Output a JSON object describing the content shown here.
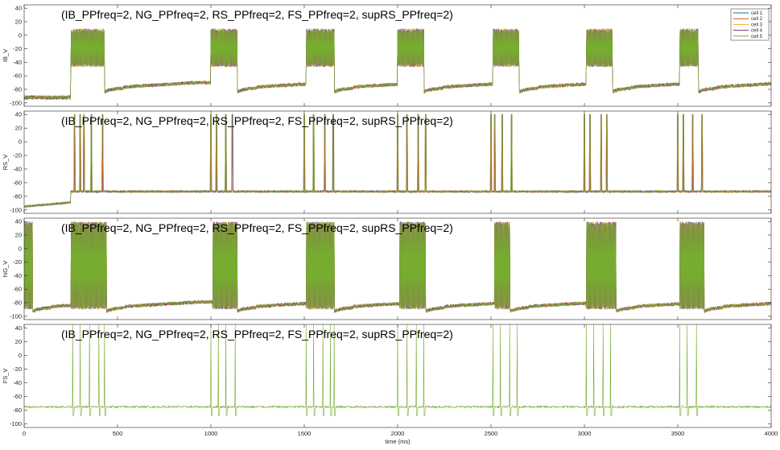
{
  "chart_data": [
    {
      "type": "line",
      "title": "(IB_PPfreq=2, NG_PPfreq=2, RS_PPfreq=2, FS_PPfreq=2, supRS_PPfreq=2)",
      "ylabel": "IB_V",
      "xlabel": "",
      "xlim": [
        0,
        4000
      ],
      "ylim": [
        -105,
        45
      ],
      "yticks": [
        -100,
        -80,
        -60,
        -40,
        -20,
        0,
        20,
        40
      ],
      "xticks": [
        0,
        500,
        1000,
        1500,
        2000,
        2500,
        3000,
        3500,
        4000
      ],
      "show_xtick_labels": false,
      "grid": false,
      "legend_position": "top-right",
      "burst_windows_ms": [
        [
          250,
          430
        ],
        [
          1000,
          1140
        ],
        [
          1510,
          1660
        ],
        [
          2000,
          2140
        ],
        [
          2510,
          2650
        ],
        [
          3010,
          3150
        ],
        [
          3510,
          3610
        ]
      ],
      "burst_range_mV": [
        -47,
        10
      ],
      "baseline_start_mV": -92,
      "baseline_level_mV": -78,
      "series": [
        {
          "name": "cell 1",
          "color": "#0072BD"
        },
        {
          "name": "cell 2",
          "color": "#D95319"
        },
        {
          "name": "cell 3",
          "color": "#EDB120"
        },
        {
          "name": "cell 4",
          "color": "#7E2F8E"
        },
        {
          "name": "cell 5",
          "color": "#77AC30"
        }
      ]
    },
    {
      "type": "line",
      "title": "(IB_PPfreq=2, NG_PPfreq=2, RS_PPfreq=2, FS_PPfreq=2, supRS_PPfreq=2)",
      "ylabel": "RS_V",
      "xlabel": "",
      "xlim": [
        0,
        4000
      ],
      "ylim": [
        -105,
        45
      ],
      "yticks": [
        -100,
        -80,
        -60,
        -40,
        -20,
        0,
        20,
        40
      ],
      "xticks": [
        0,
        500,
        1000,
        1500,
        2000,
        2500,
        3000,
        3500,
        4000
      ],
      "show_xtick_labels": false,
      "grid": false,
      "spike_times_ms": [
        270,
        300,
        320,
        360,
        420,
        1000,
        1030,
        1080,
        1115,
        1500,
        1550,
        1610,
        1655,
        2000,
        2050,
        2110,
        2150,
        2500,
        2520,
        2560,
        2610,
        3000,
        3030,
        3090,
        3120,
        3500,
        3530,
        3580,
        3630
      ],
      "spike_peak_mV": 40,
      "baseline_start_mV": -95,
      "baseline_level_mV": -73,
      "series": [
        {
          "name": "cell 1",
          "color": "#0072BD"
        },
        {
          "name": "cell 2",
          "color": "#D95319"
        },
        {
          "name": "cell 3",
          "color": "#EDB120"
        },
        {
          "name": "cell 4",
          "color": "#7E2F8E"
        },
        {
          "name": "cell 5",
          "color": "#77AC30"
        }
      ]
    },
    {
      "type": "line",
      "title": "(IB_PPfreq=2, NG_PPfreq=2, RS_PPfreq=2, FS_PPfreq=2, supRS_PPfreq=2)",
      "ylabel": "NG_V",
      "xlabel": "",
      "xlim": [
        0,
        4000
      ],
      "ylim": [
        -105,
        45
      ],
      "yticks": [
        -100,
        -80,
        -60,
        -40,
        -20,
        0,
        20,
        40
      ],
      "xticks": [
        0,
        500,
        1000,
        1500,
        2000,
        2500,
        3000,
        3500,
        4000
      ],
      "show_xtick_labels": false,
      "grid": false,
      "burst_windows_ms": [
        [
          0,
          45
        ],
        [
          250,
          440
        ],
        [
          1010,
          1140
        ],
        [
          1510,
          1660
        ],
        [
          2010,
          2150
        ],
        [
          2520,
          2600
        ],
        [
          3010,
          3170
        ],
        [
          3510,
          3640
        ]
      ],
      "burst_range_mV": [
        -90,
        40
      ],
      "baseline_level_mV": -87,
      "series": [
        {
          "name": "cell 1",
          "color": "#0072BD"
        },
        {
          "name": "cell 2",
          "color": "#D95319"
        },
        {
          "name": "cell 3",
          "color": "#EDB120"
        },
        {
          "name": "cell 4",
          "color": "#7E2F8E"
        },
        {
          "name": "cell 5",
          "color": "#77AC30"
        }
      ]
    },
    {
      "type": "line",
      "title": "(IB_PPfreq=2, NG_PPfreq=2, RS_PPfreq=2, FS_PPfreq=2, supRS_PPfreq=2)",
      "ylabel": "FS_V",
      "xlabel": "time (ms)",
      "xlim": [
        0,
        4000
      ],
      "ylim": [
        -105,
        45
      ],
      "yticks": [
        -100,
        -80,
        -60,
        -40,
        -20,
        0,
        20,
        40
      ],
      "xticks": [
        0,
        500,
        1000,
        1500,
        2000,
        2500,
        3000,
        3500,
        4000
      ],
      "show_xtick_labels": true,
      "grid": false,
      "spike_times_ms": [
        260,
        300,
        350,
        400,
        430,
        1000,
        1040,
        1080,
        1130,
        1510,
        1550,
        1600,
        1640,
        1660,
        2000,
        2050,
        2100,
        2140,
        2510,
        2550,
        2600,
        2640,
        3010,
        3050,
        3100,
        3140,
        3510,
        3550,
        3600
      ],
      "spike_peak_mV": 45,
      "spike_trough_mV": -88,
      "baseline_level_mV": -75,
      "series": [
        {
          "name": "cell 5",
          "color": "#77AC30"
        }
      ]
    }
  ]
}
